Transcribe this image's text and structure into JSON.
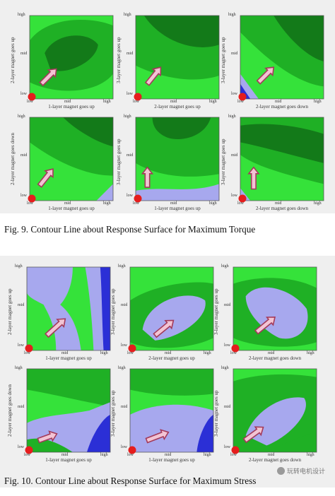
{
  "figures": [
    {
      "id": "fig9",
      "caption": "Fig. 9. Contour Line about Response Surface for Maximum Torque",
      "panels": [
        {
          "ylabel": "2-layer magnet goes up",
          "xlabel": "1-layer magnet goes up",
          "ticks": [
            "high",
            "mid",
            "low",
            "low",
            "mid",
            "high"
          ],
          "variant": "t1"
        },
        {
          "ylabel": "3-layer magnet goes up",
          "xlabel": "2-layer magnet goes up",
          "ticks": [
            "high",
            "mid",
            "low",
            "low",
            "mid",
            "high"
          ],
          "variant": "t2"
        },
        {
          "ylabel": "3-layer magnet goes up",
          "xlabel": "2-layer magnet goes down",
          "ticks": [
            "high",
            "mid",
            "low",
            "low",
            "mid",
            "high"
          ],
          "variant": "t3"
        },
        {
          "ylabel": "2-layer magnet goes down",
          "xlabel": "1-layer magnet goes up",
          "ticks": [
            "high",
            "mid",
            "low",
            "low",
            "mid",
            "high"
          ],
          "variant": "t4"
        },
        {
          "ylabel": "3-layer magnet goes up",
          "xlabel": "1-layer magnet goes up",
          "ticks": [
            "high",
            "mid",
            "low",
            "low",
            "mid",
            "high"
          ],
          "variant": "t5"
        },
        {
          "ylabel": "3-layer magnet goes up",
          "xlabel": "2-layer magnet goes down",
          "ticks": [
            "high",
            "mid",
            "low",
            "low",
            "mid",
            "high"
          ],
          "variant": "t6"
        }
      ]
    },
    {
      "id": "fig10",
      "caption": "Fig. 10. Contour Line about Response Surface for Maximum Stress",
      "panels": [
        {
          "ylabel": "2-layer magnet goes up",
          "xlabel": "1-layer magnet goes up",
          "ticks": [
            "high",
            "mid",
            "low",
            "low",
            "mid",
            "high"
          ],
          "variant": "s1"
        },
        {
          "ylabel": "3-layer magnet goes up",
          "xlabel": "2-layer magnet goes up",
          "ticks": [
            "high",
            "mid",
            "low",
            "low",
            "mid",
            "high"
          ],
          "variant": "s2"
        },
        {
          "ylabel": "3-layer magnet goes up",
          "xlabel": "2-layer magnet goes down",
          "ticks": [
            "high",
            "mid",
            "low",
            "low",
            "mid",
            "high"
          ],
          "variant": "s3"
        },
        {
          "ylabel": "2-layer magnet goes down",
          "xlabel": "1-layer magnet goes up",
          "ticks": [
            "high",
            "mid",
            "low",
            "low",
            "mid",
            "high"
          ],
          "variant": "s4"
        },
        {
          "ylabel": "3-layer magnet goes up",
          "xlabel": "1-layer magnet goes up",
          "ticks": [
            "high",
            "mid",
            "low",
            "low",
            "mid",
            "high"
          ],
          "variant": "s5"
        },
        {
          "ylabel": "3-layer magnet goes up",
          "xlabel": "2-layer magnet goes down",
          "ticks": [
            "high",
            "mid",
            "low",
            "low",
            "mid",
            "high"
          ],
          "variant": "s6"
        }
      ]
    }
  ],
  "watermark": "玩转电机设计",
  "colors": {
    "light_green": "#35e23a",
    "mid_green": "#1fb025",
    "dark_green": "#137a19",
    "lavender": "#a7a8ee",
    "blue": "#2b2fd6",
    "dot": "#e51d1d",
    "arrow_fill": "#f2c4d4",
    "arrow_edge": "#a33a5a"
  }
}
